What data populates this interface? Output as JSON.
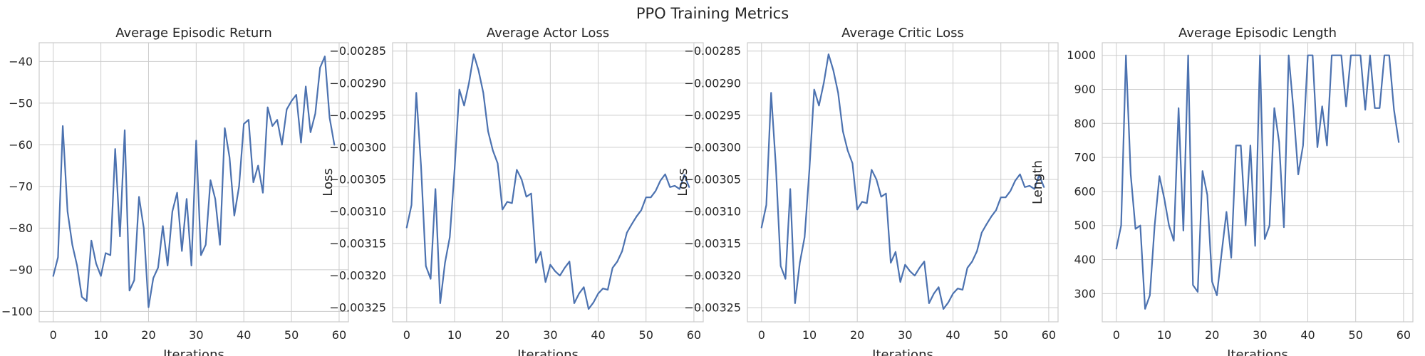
{
  "figure": {
    "title": "PPO Training Metrics"
  },
  "chart_data": [
    {
      "type": "line",
      "title": "Average Episodic Return",
      "xlabel": "Iterations",
      "ylabel": "",
      "xlim": [
        -2.95,
        61.95
      ],
      "ylim": [
        -102.5,
        -35.5
      ],
      "xticks": [
        0,
        10,
        20,
        30,
        40,
        50,
        60
      ],
      "yticks": [
        -100,
        -90,
        -80,
        -70,
        -60,
        -50,
        -40
      ],
      "grid": true,
      "series": [
        {
          "name": "",
          "color": "#4c72b0",
          "x": [
            0,
            1,
            2,
            3,
            4,
            5,
            6,
            7,
            8,
            9,
            10,
            11,
            12,
            13,
            14,
            15,
            16,
            17,
            18,
            19,
            20,
            21,
            22,
            23,
            24,
            25,
            26,
            27,
            28,
            29,
            30,
            31,
            32,
            33,
            34,
            35,
            36,
            37,
            38,
            39,
            40,
            41,
            42,
            43,
            44,
            45,
            46,
            47,
            48,
            49,
            50,
            51,
            52,
            53,
            54,
            55,
            56,
            57,
            58,
            59
          ],
          "y": [
            -91.5,
            -87,
            -55.5,
            -76,
            -84,
            -89,
            -96.5,
            -97.5,
            -83,
            -88.5,
            -91.5,
            -86,
            -86.5,
            -61,
            -82,
            -56.5,
            -95,
            -92.5,
            -72.5,
            -80,
            -99,
            -92,
            -89.5,
            -79.5,
            -89,
            -76,
            -71.5,
            -85.5,
            -73,
            -89,
            -59,
            -86.5,
            -84,
            -68.5,
            -73,
            -84,
            -56,
            -63,
            -77,
            -70,
            -55,
            -54,
            -69,
            -65,
            -71.5,
            -51,
            -55.5,
            -54,
            -60,
            -51.5,
            -49.5,
            -48,
            -59.5,
            -46,
            -57,
            -52.5,
            -41.5,
            -38.8,
            -53.5,
            -60
          ]
        }
      ]
    },
    {
      "type": "line",
      "title": "Average Actor Loss",
      "xlabel": "Iterations",
      "ylabel": "Loss",
      "xlim": [
        -2.95,
        61.95
      ],
      "ylim": [
        -0.003272,
        -0.002837
      ],
      "xticks": [
        0,
        10,
        20,
        30,
        40,
        50,
        60
      ],
      "yticks": [
        -0.00325,
        -0.0032,
        -0.00315,
        -0.0031,
        -0.00305,
        -0.003,
        -0.00295,
        -0.0029,
        -0.00285
      ],
      "grid": true,
      "series": [
        {
          "name": "",
          "color": "#4c72b0",
          "x": [
            0,
            1,
            2,
            3,
            4,
            5,
            6,
            7,
            8,
            9,
            10,
            11,
            12,
            13,
            14,
            15,
            16,
            17,
            18,
            19,
            20,
            21,
            22,
            23,
            24,
            25,
            26,
            27,
            28,
            29,
            30,
            31,
            32,
            33,
            34,
            35,
            36,
            37,
            38,
            39,
            40,
            41,
            42,
            43,
            44,
            45,
            46,
            47,
            48,
            49,
            50,
            51,
            52,
            53,
            54,
            55,
            56,
            57,
            58,
            59
          ],
          "y": [
            -0.003125,
            -0.00309,
            -0.002915,
            -0.00303,
            -0.003185,
            -0.003205,
            -0.003065,
            -0.003243,
            -0.00318,
            -0.00314,
            -0.003035,
            -0.00291,
            -0.002935,
            -0.0029,
            -0.002855,
            -0.00288,
            -0.002915,
            -0.002975,
            -0.003005,
            -0.003025,
            -0.003097,
            -0.003085,
            -0.003087,
            -0.003035,
            -0.00305,
            -0.003077,
            -0.003072,
            -0.00318,
            -0.003163,
            -0.00321,
            -0.003183,
            -0.003193,
            -0.0032,
            -0.003188,
            -0.003178,
            -0.003243,
            -0.003228,
            -0.003218,
            -0.003252,
            -0.003242,
            -0.003228,
            -0.00322,
            -0.003222,
            -0.003188,
            -0.003178,
            -0.003162,
            -0.003133,
            -0.00312,
            -0.003108,
            -0.003098,
            -0.003078,
            -0.003078,
            -0.003068,
            -0.003052,
            -0.003042,
            -0.003062,
            -0.00306,
            -0.003065,
            -0.003043,
            -0.003062
          ]
        }
      ]
    },
    {
      "type": "line",
      "title": "Average Critic Loss",
      "xlabel": "Iterations",
      "ylabel": "Loss",
      "xlim": [
        -2.95,
        61.95
      ],
      "ylim": [
        -0.003272,
        -0.002837
      ],
      "xticks": [
        0,
        10,
        20,
        30,
        40,
        50,
        60
      ],
      "yticks": [
        -0.00325,
        -0.0032,
        -0.00315,
        -0.0031,
        -0.00305,
        -0.003,
        -0.00295,
        -0.0029,
        -0.00285
      ],
      "grid": true,
      "series": [
        {
          "name": "",
          "color": "#4c72b0",
          "x": [
            0,
            1,
            2,
            3,
            4,
            5,
            6,
            7,
            8,
            9,
            10,
            11,
            12,
            13,
            14,
            15,
            16,
            17,
            18,
            19,
            20,
            21,
            22,
            23,
            24,
            25,
            26,
            27,
            28,
            29,
            30,
            31,
            32,
            33,
            34,
            35,
            36,
            37,
            38,
            39,
            40,
            41,
            42,
            43,
            44,
            45,
            46,
            47,
            48,
            49,
            50,
            51,
            52,
            53,
            54,
            55,
            56,
            57,
            58,
            59
          ],
          "y": [
            -0.003125,
            -0.00309,
            -0.002915,
            -0.00303,
            -0.003185,
            -0.003205,
            -0.003065,
            -0.003243,
            -0.00318,
            -0.00314,
            -0.003035,
            -0.00291,
            -0.002935,
            -0.0029,
            -0.002855,
            -0.00288,
            -0.002915,
            -0.002975,
            -0.003005,
            -0.003025,
            -0.003097,
            -0.003085,
            -0.003087,
            -0.003035,
            -0.00305,
            -0.003077,
            -0.003072,
            -0.00318,
            -0.003163,
            -0.00321,
            -0.003183,
            -0.003193,
            -0.0032,
            -0.003188,
            -0.003178,
            -0.003243,
            -0.003228,
            -0.003218,
            -0.003252,
            -0.003242,
            -0.003228,
            -0.00322,
            -0.003222,
            -0.003188,
            -0.003178,
            -0.003162,
            -0.003133,
            -0.00312,
            -0.003108,
            -0.003098,
            -0.003078,
            -0.003078,
            -0.003068,
            -0.003052,
            -0.003042,
            -0.003062,
            -0.00306,
            -0.003065,
            -0.003043,
            -0.003062
          ]
        }
      ]
    },
    {
      "type": "line",
      "title": "Average Episodic Length",
      "xlabel": "Iterations",
      "ylabel": "Length",
      "xlim": [
        -2.95,
        61.95
      ],
      "ylim": [
        217,
        1037
      ],
      "xticks": [
        0,
        10,
        20,
        30,
        40,
        50,
        60
      ],
      "yticks": [
        300,
        400,
        500,
        600,
        700,
        800,
        900,
        1000
      ],
      "grid": true,
      "series": [
        {
          "name": "",
          "color": "#4c72b0",
          "x": [
            0,
            1,
            2,
            3,
            4,
            5,
            6,
            7,
            8,
            9,
            10,
            11,
            12,
            13,
            14,
            15,
            16,
            17,
            18,
            19,
            20,
            21,
            22,
            23,
            24,
            25,
            26,
            27,
            28,
            29,
            30,
            31,
            32,
            33,
            34,
            35,
            36,
            37,
            38,
            39,
            40,
            41,
            42,
            43,
            44,
            45,
            46,
            47,
            48,
            49,
            50,
            51,
            52,
            53,
            54,
            55,
            56,
            57,
            58,
            59
          ],
          "y": [
            432,
            500,
            1000,
            650,
            490,
            500,
            255,
            295,
            500,
            645,
            580,
            500,
            455,
            845,
            485,
            1000,
            325,
            305,
            660,
            590,
            335,
            295,
            420,
            540,
            405,
            735,
            735,
            500,
            735,
            440,
            1000,
            460,
            500,
            845,
            745,
            495,
            1000,
            840,
            650,
            735,
            1000,
            1000,
            730,
            850,
            735,
            1000,
            1000,
            1000,
            850,
            1000,
            1000,
            1000,
            840,
            1000,
            845,
            845,
            1000,
            1000,
            840,
            745
          ]
        }
      ]
    }
  ]
}
